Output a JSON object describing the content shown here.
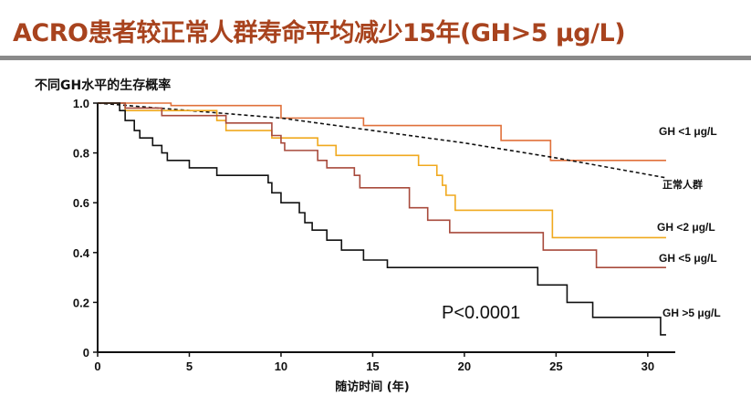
{
  "slide": {
    "title": "ACRO患者较正常人群寿命平均减少15年(GH>5 μg/L)"
  },
  "chart_data": {
    "type": "line",
    "title": "不同GH水平的生存概率",
    "xlabel": "随访时间 (年)",
    "ylabel": "",
    "xlim": [
      0,
      31.5
    ],
    "ylim": [
      0,
      1.0
    ],
    "xticks": [
      0,
      5,
      10,
      15,
      20,
      25,
      30
    ],
    "yticks": [
      0,
      0.2,
      0.4,
      0.6,
      0.8,
      1.0
    ],
    "ytick_labels": [
      "0",
      "0.2",
      "0.4",
      "0.6",
      "0.8",
      "1.0"
    ],
    "annotation": "P<0.0001",
    "series": [
      {
        "name": "GH <1 μg/L",
        "color": "#e0703a",
        "style": "step",
        "points": [
          [
            0,
            1.0
          ],
          [
            4,
            0.99
          ],
          [
            10,
            0.94
          ],
          [
            14.5,
            0.91
          ],
          [
            22,
            0.85
          ],
          [
            24.7,
            0.77
          ],
          [
            31,
            0.77
          ]
        ]
      },
      {
        "name": "正常人群",
        "color": "#111111",
        "style": "dashed",
        "points": [
          [
            0,
            1.0
          ],
          [
            5,
            0.97
          ],
          [
            10,
            0.94
          ],
          [
            15,
            0.89
          ],
          [
            20,
            0.84
          ],
          [
            25,
            0.78
          ],
          [
            28,
            0.74
          ],
          [
            31,
            0.7
          ]
        ]
      },
      {
        "name": "GH <2 μg/L",
        "color": "#f0a91e",
        "style": "step",
        "points": [
          [
            0,
            1.0
          ],
          [
            1.5,
            0.97
          ],
          [
            6.5,
            0.93
          ],
          [
            7,
            0.89
          ],
          [
            9.5,
            0.86
          ],
          [
            12,
            0.83
          ],
          [
            13,
            0.79
          ],
          [
            17.5,
            0.75
          ],
          [
            18.5,
            0.71
          ],
          [
            18.8,
            0.67
          ],
          [
            19,
            0.63
          ],
          [
            19.5,
            0.57
          ],
          [
            24.8,
            0.46
          ],
          [
            31,
            0.46
          ]
        ]
      },
      {
        "name": "GH <5 μg/L",
        "color": "#a84a3c",
        "style": "step",
        "points": [
          [
            0,
            1.0
          ],
          [
            1.5,
            0.98
          ],
          [
            3.5,
            0.95
          ],
          [
            7,
            0.92
          ],
          [
            9.5,
            0.87
          ],
          [
            10,
            0.84
          ],
          [
            10.2,
            0.81
          ],
          [
            12,
            0.77
          ],
          [
            12.5,
            0.74
          ],
          [
            14,
            0.71
          ],
          [
            14.3,
            0.66
          ],
          [
            17,
            0.58
          ],
          [
            18,
            0.53
          ],
          [
            19.2,
            0.48
          ],
          [
            24.3,
            0.41
          ],
          [
            27.2,
            0.34
          ],
          [
            31,
            0.34
          ]
        ]
      },
      {
        "name": "GH >5 μg/L",
        "color": "#111111",
        "style": "step",
        "points": [
          [
            0,
            1.0
          ],
          [
            1.2,
            0.97
          ],
          [
            1.5,
            0.93
          ],
          [
            2,
            0.89
          ],
          [
            2.3,
            0.86
          ],
          [
            3,
            0.83
          ],
          [
            3.5,
            0.8
          ],
          [
            3.8,
            0.77
          ],
          [
            5,
            0.74
          ],
          [
            6.5,
            0.71
          ],
          [
            9.3,
            0.68
          ],
          [
            9.5,
            0.64
          ],
          [
            10,
            0.6
          ],
          [
            11,
            0.56
          ],
          [
            11.3,
            0.52
          ],
          [
            11.7,
            0.49
          ],
          [
            12.5,
            0.45
          ],
          [
            13.3,
            0.41
          ],
          [
            14.5,
            0.37
          ],
          [
            15.8,
            0.34
          ],
          [
            24,
            0.27
          ],
          [
            25.6,
            0.2
          ],
          [
            27,
            0.14
          ],
          [
            30.7,
            0.07
          ],
          [
            31,
            0.07
          ]
        ]
      }
    ]
  }
}
